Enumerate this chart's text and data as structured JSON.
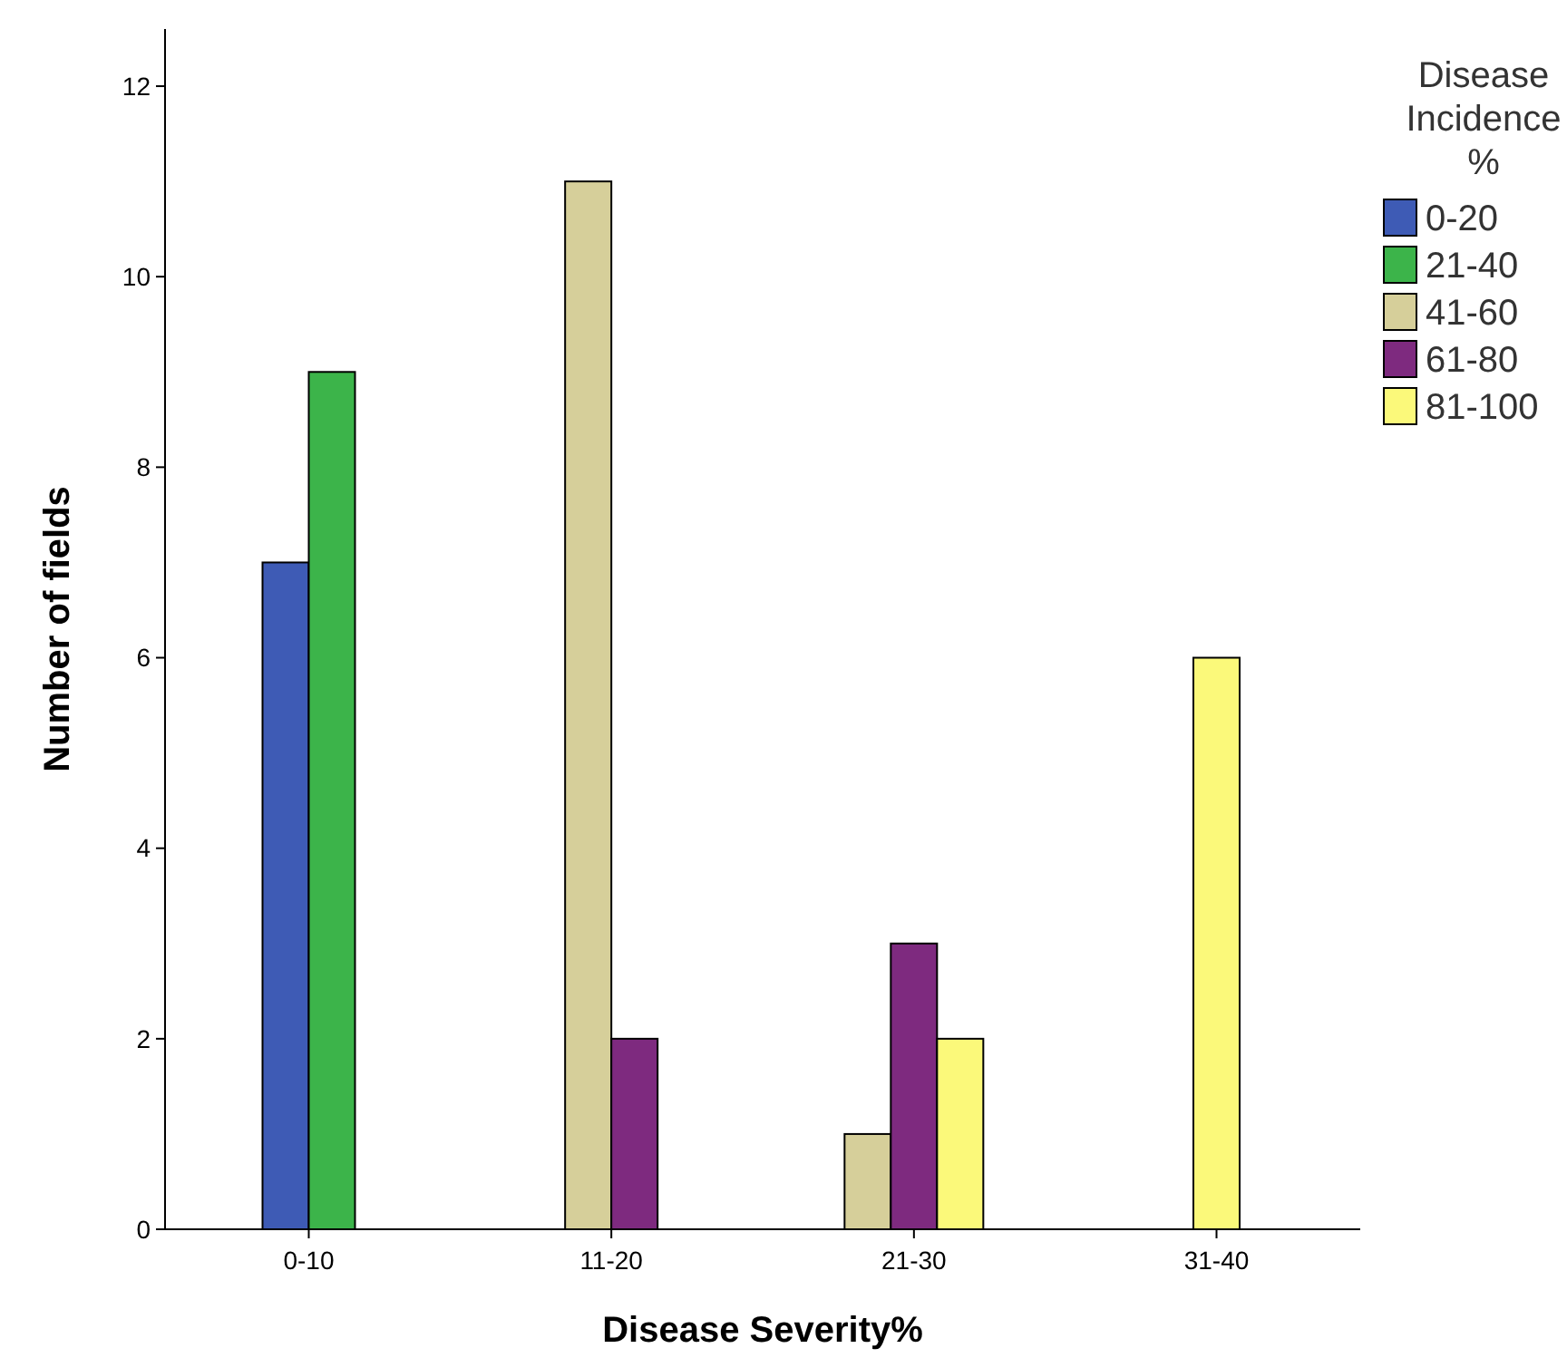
{
  "chart_data": {
    "type": "bar",
    "xlabel": "Disease Severity%",
    "ylabel": "Number of fields",
    "legend_title": "Disease Incidence %",
    "legend": "right",
    "categories": [
      "0-10",
      "11-20",
      "21-30",
      "31-40"
    ],
    "series": [
      {
        "name": "0-20",
        "color": "#3e5bb5",
        "values": [
          7,
          null,
          null,
          null
        ]
      },
      {
        "name": "21-40",
        "color": "#3cb44a",
        "values": [
          9,
          null,
          null,
          null
        ]
      },
      {
        "name": "41-60",
        "color": "#d6cf9a",
        "values": [
          null,
          11,
          1,
          null
        ]
      },
      {
        "name": "61-80",
        "color": "#7e2a7f",
        "values": [
          null,
          2,
          3,
          null
        ]
      },
      {
        "name": "81-100",
        "color": "#fbf97a",
        "values": [
          null,
          null,
          2,
          6
        ]
      }
    ],
    "ylim": [
      0,
      12.6
    ],
    "yticks": [
      0,
      2,
      4,
      6,
      8,
      10,
      12
    ],
    "grid": false
  }
}
